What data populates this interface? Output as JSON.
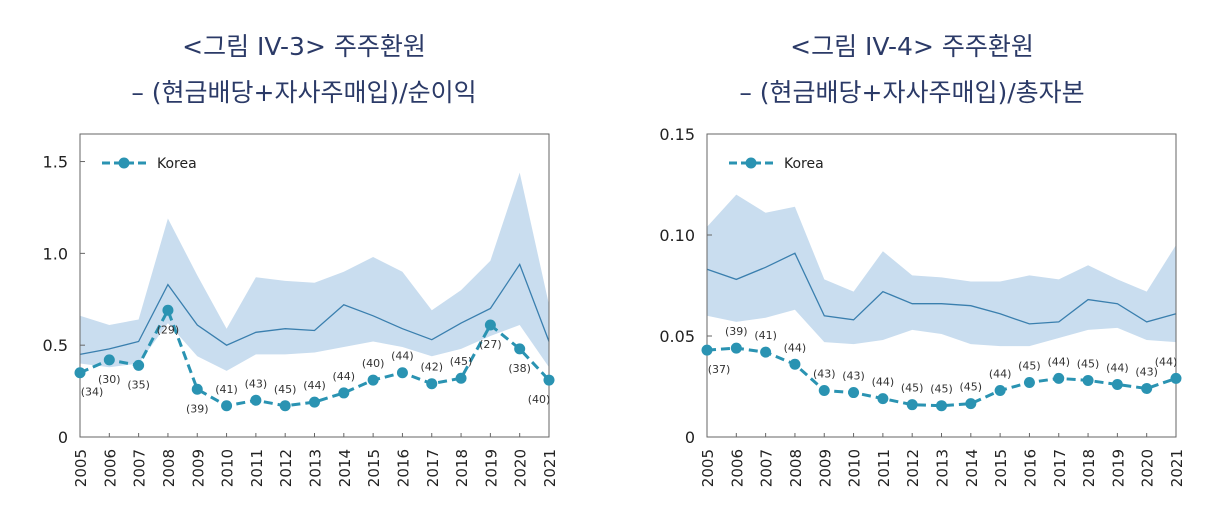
{
  "chart_data": [
    {
      "type": "line",
      "title_line1": "<그림 IV-3> 주주환원",
      "title_line2": "– (현금배당+자사주매입)/순이익",
      "x": [
        "2005",
        "2006",
        "2007",
        "2008",
        "2009",
        "2010",
        "2011",
        "2012",
        "2013",
        "2014",
        "2015",
        "2016",
        "2017",
        "2018",
        "2019",
        "2020",
        "2021"
      ],
      "ylim": [
        0,
        1.65
      ],
      "yticks": [
        0,
        0.5,
        1.0,
        1.5
      ],
      "ytick_labels": [
        "0",
        "0.5",
        "1.0",
        "1.5"
      ],
      "legend": "top-left",
      "grid": false,
      "series": [
        {
          "name": "Korea",
          "color": "#2a93b2",
          "values": [
            0.35,
            0.42,
            0.39,
            0.69,
            0.26,
            0.17,
            0.2,
            0.17,
            0.19,
            0.24,
            0.31,
            0.35,
            0.29,
            0.32,
            0.61,
            0.48,
            0.31
          ],
          "labels": [
            "(34)",
            "(30)",
            "(35)",
            "(29)",
            "(39)",
            "(41)",
            "(43)",
            "(45)",
            "(44)",
            "(44)",
            "(40)",
            "(44)",
            "(42)",
            "(45)",
            "(27)",
            "(38)",
            "(40)"
          ]
        }
      ],
      "band": {
        "color": "#c9ddef",
        "upper": [
          0.66,
          0.61,
          0.64,
          1.19,
          0.88,
          0.59,
          0.87,
          0.85,
          0.84,
          0.9,
          0.98,
          0.9,
          0.69,
          0.8,
          0.96,
          1.44,
          0.72
        ],
        "median": [
          0.45,
          0.48,
          0.52,
          0.83,
          0.61,
          0.5,
          0.57,
          0.59,
          0.58,
          0.72,
          0.66,
          0.59,
          0.53,
          0.62,
          0.7,
          0.94,
          0.52
        ],
        "lower": [
          0.4,
          0.38,
          0.4,
          0.62,
          0.44,
          0.36,
          0.45,
          0.45,
          0.46,
          0.49,
          0.52,
          0.49,
          0.44,
          0.48,
          0.55,
          0.61,
          0.38
        ]
      }
    },
    {
      "type": "line",
      "title_line1": "<그림 IV-4> 주주환원",
      "title_line2": "– (현금배당+자사주매입)/총자본",
      "x": [
        "2005",
        "2006",
        "2007",
        "2008",
        "2009",
        "2010",
        "2011",
        "2012",
        "2013",
        "2014",
        "2015",
        "2016",
        "2017",
        "2018",
        "2019",
        "2020",
        "2021"
      ],
      "ylim": [
        0,
        0.15
      ],
      "yticks": [
        0,
        0.05,
        0.1,
        0.15
      ],
      "ytick_labels": [
        "0",
        "0.05",
        "0.10",
        "0.15"
      ],
      "legend": "top-left",
      "grid": false,
      "series": [
        {
          "name": "Korea",
          "color": "#2a93b2",
          "values": [
            0.043,
            0.044,
            0.042,
            0.036,
            0.023,
            0.022,
            0.019,
            0.016,
            0.0155,
            0.0165,
            0.023,
            0.027,
            0.029,
            0.028,
            0.026,
            0.024,
            0.029
          ],
          "labels": [
            "(37)",
            "(39)",
            "(41)",
            "(44)",
            "(43)",
            "(43)",
            "(44)",
            "(45)",
            "(45)",
            "(45)",
            "(44)",
            "(45)",
            "(44)",
            "(45)",
            "(44)",
            "(43)",
            "(44)"
          ]
        }
      ],
      "band": {
        "color": "#c9ddef",
        "upper": [
          0.104,
          0.12,
          0.111,
          0.114,
          0.078,
          0.072,
          0.092,
          0.08,
          0.079,
          0.077,
          0.077,
          0.08,
          0.078,
          0.085,
          0.078,
          0.072,
          0.095
        ],
        "median": [
          0.083,
          0.078,
          0.084,
          0.091,
          0.06,
          0.058,
          0.072,
          0.066,
          0.066,
          0.065,
          0.061,
          0.056,
          0.057,
          0.068,
          0.066,
          0.057,
          0.061
        ],
        "lower": [
          0.06,
          0.057,
          0.059,
          0.063,
          0.047,
          0.046,
          0.048,
          0.053,
          0.051,
          0.046,
          0.045,
          0.045,
          0.049,
          0.053,
          0.054,
          0.048,
          0.047
        ]
      }
    }
  ]
}
